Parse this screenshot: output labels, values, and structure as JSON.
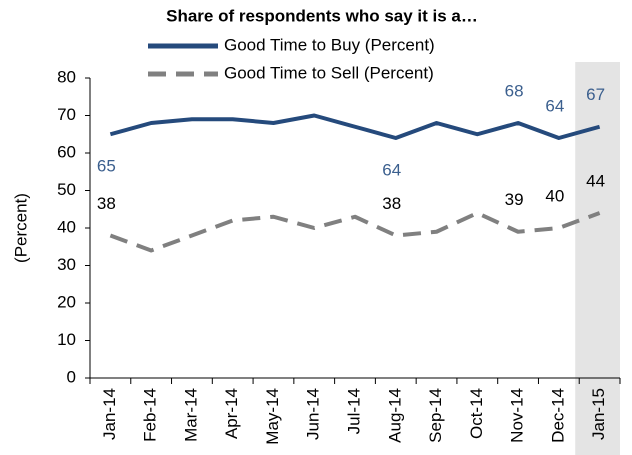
{
  "chart_data": {
    "type": "line",
    "title": "Share of respondents who say it is a…",
    "y_label": "(Percent)",
    "categories": [
      "Jan-14",
      "Feb-14",
      "Mar-14",
      "Apr-14",
      "May-14",
      "Jun-14",
      "Jul-14",
      "Aug-14",
      "Sep-14",
      "Oct-14",
      "Nov-14",
      "Dec-14",
      "Jan-15"
    ],
    "series": [
      {
        "name": "Good Time to Buy (Percent)",
        "color": "#254a7c",
        "label_color": "#3b5f8e",
        "dash": false,
        "values": [
          65,
          68,
          69,
          69,
          68,
          70,
          67,
          64,
          68,
          65,
          68,
          64,
          67
        ]
      },
      {
        "name": "Good Time to Sell (Percent)",
        "color": "#808080",
        "label_color": "#000000",
        "dash": true,
        "values": [
          38,
          34,
          38,
          42,
          43,
          40,
          43,
          38,
          39,
          44,
          39,
          40,
          44
        ]
      }
    ],
    "labeled_points": [
      0,
      7,
      10,
      11,
      12
    ],
    "highlight_category": 12,
    "highlight_color": "#e4e4e4",
    "ylim": [
      0,
      80
    ],
    "yticks": [
      0,
      10,
      20,
      30,
      40,
      50,
      60,
      70,
      80
    ],
    "grid": false
  }
}
